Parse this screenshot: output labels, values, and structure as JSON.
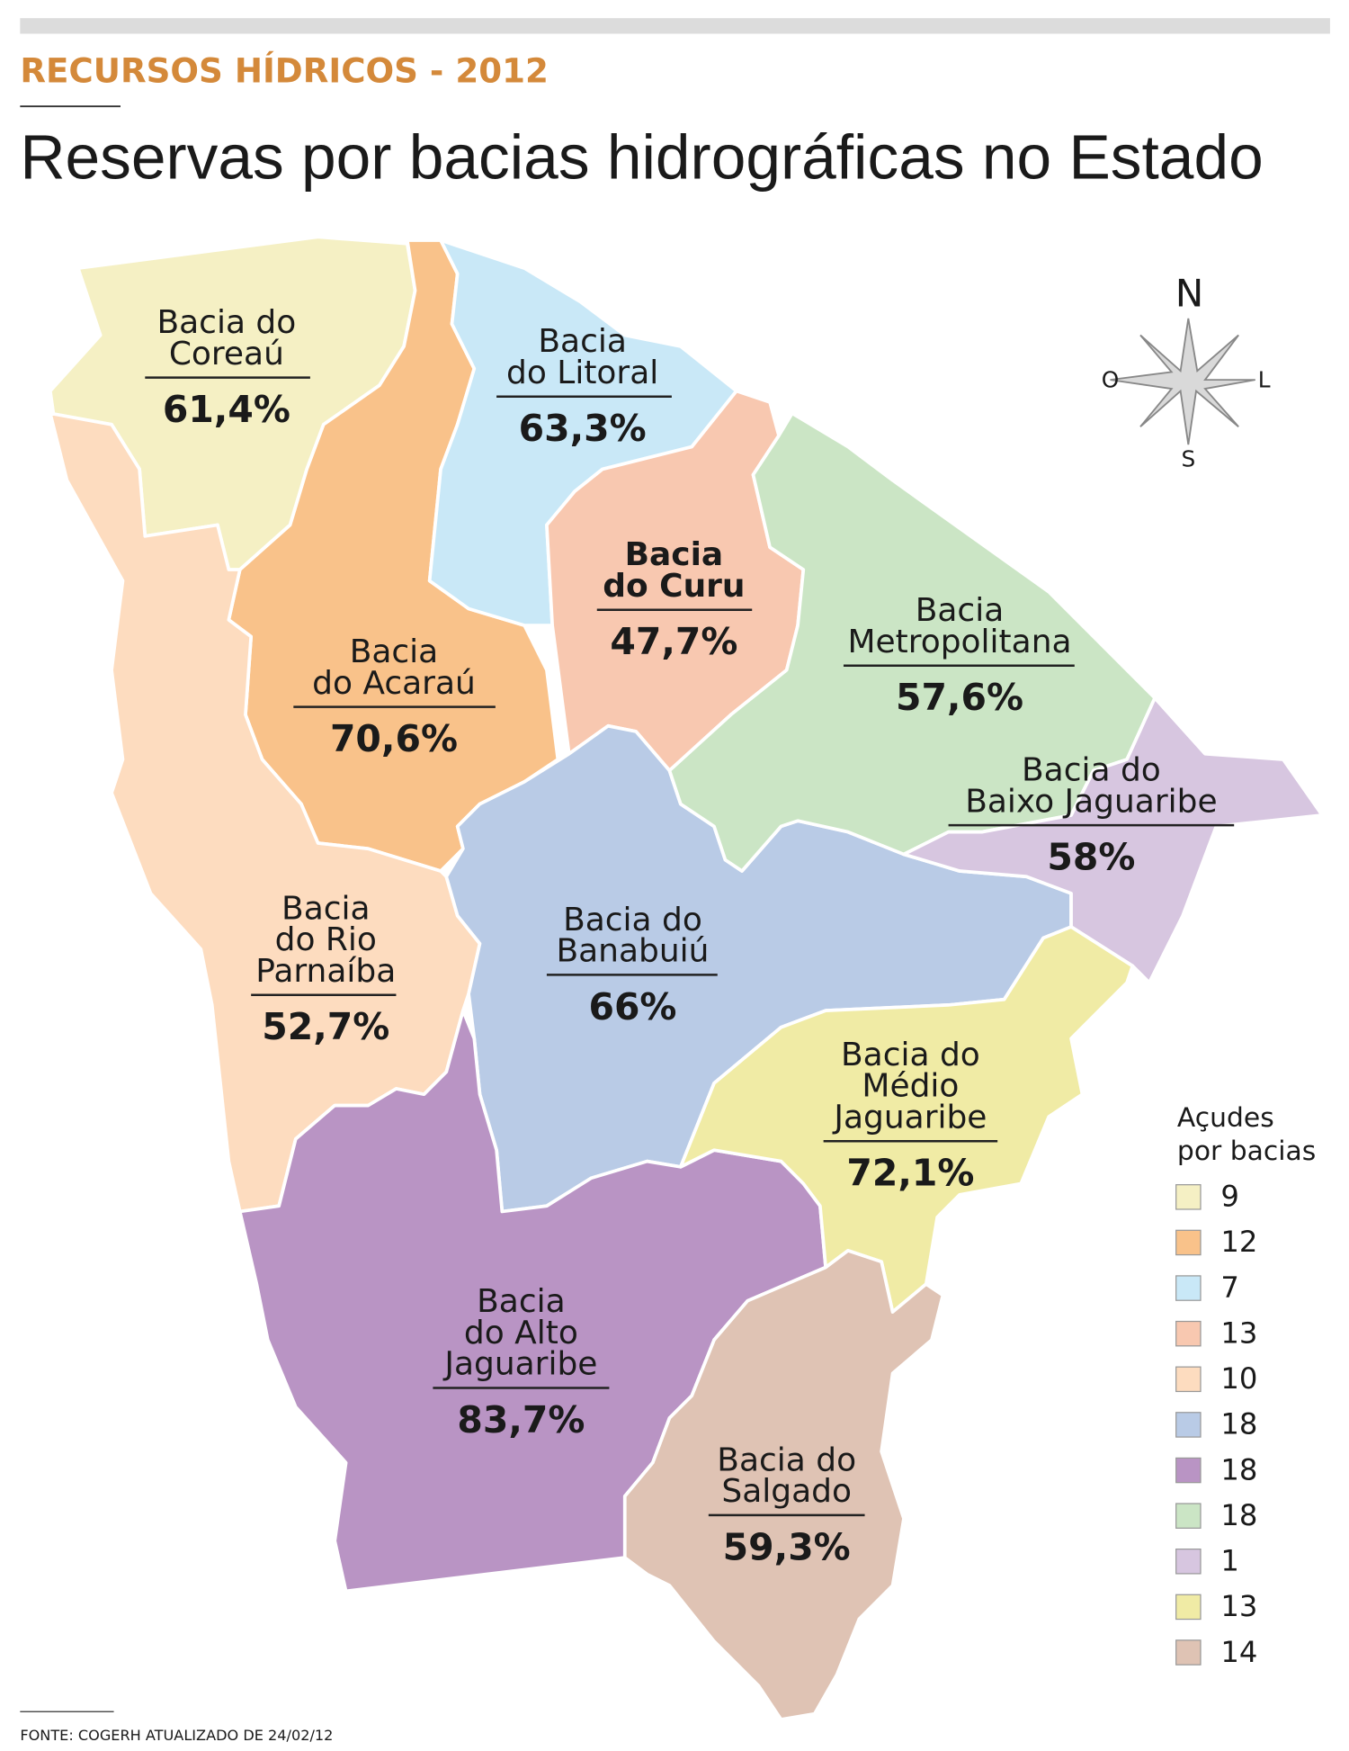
{
  "header": {
    "kicker": "RECURSOS HÍDRICOS - 2012",
    "title": "Reservas por bacias hidrográficas no Estado"
  },
  "compass": {
    "north": "N",
    "west": "O",
    "east": "L",
    "south": "S"
  },
  "regions": [
    {
      "name": [
        "Bacia do",
        "Coreaú"
      ],
      "reserve": "61,4%",
      "dams": 9,
      "color": "#f5f0c4"
    },
    {
      "name": [
        "Bacia",
        "do Acaraú"
      ],
      "reserve": "70,6%",
      "dams": 12,
      "color": "#f9c28a"
    },
    {
      "name": [
        "Bacia",
        "do Litoral"
      ],
      "reserve": "63,3%",
      "dams": 7,
      "color": "#c9e8f7"
    },
    {
      "name": [
        "Bacia",
        "do Curu"
      ],
      "reserve": "47,7%",
      "dams": 13,
      "color": "#f8c8b0"
    },
    {
      "name": [
        "Bacia",
        "do Rio",
        "Parnaíba"
      ],
      "reserve": "52,7%",
      "dams": 10,
      "color": "#fddcbf"
    },
    {
      "name": [
        "Bacia do",
        "Banabuiú"
      ],
      "reserve": "66%",
      "dams": 18,
      "color": "#b9cbe6"
    },
    {
      "name": [
        "Bacia",
        "do Alto",
        "Jaguaribe"
      ],
      "reserve": "83,7%",
      "dams": 18,
      "color": "#b994c4"
    },
    {
      "name": [
        "Bacia",
        "Metropolitana"
      ],
      "reserve": "57,6%",
      "dams": 18,
      "color": "#cbe5c5"
    },
    {
      "name": [
        "Bacia do",
        "Baixo Jaguaribe"
      ],
      "reserve": "58%",
      "dams": 1,
      "color": "#d7c6e0"
    },
    {
      "name": [
        "Bacia do",
        "Médio",
        "Jaguaribe"
      ],
      "reserve": "72,1%",
      "dams": 13,
      "color": "#f0eba5"
    },
    {
      "name": [
        "Bacia do",
        "Salgado"
      ],
      "reserve": "59,3%",
      "dams": 14,
      "color": "#dfc3b4"
    }
  ],
  "legend": {
    "title": [
      "Açudes",
      "por bacias"
    ]
  },
  "source": "FONTE: COGERH ATUALIZADO DE 24/02/12"
}
